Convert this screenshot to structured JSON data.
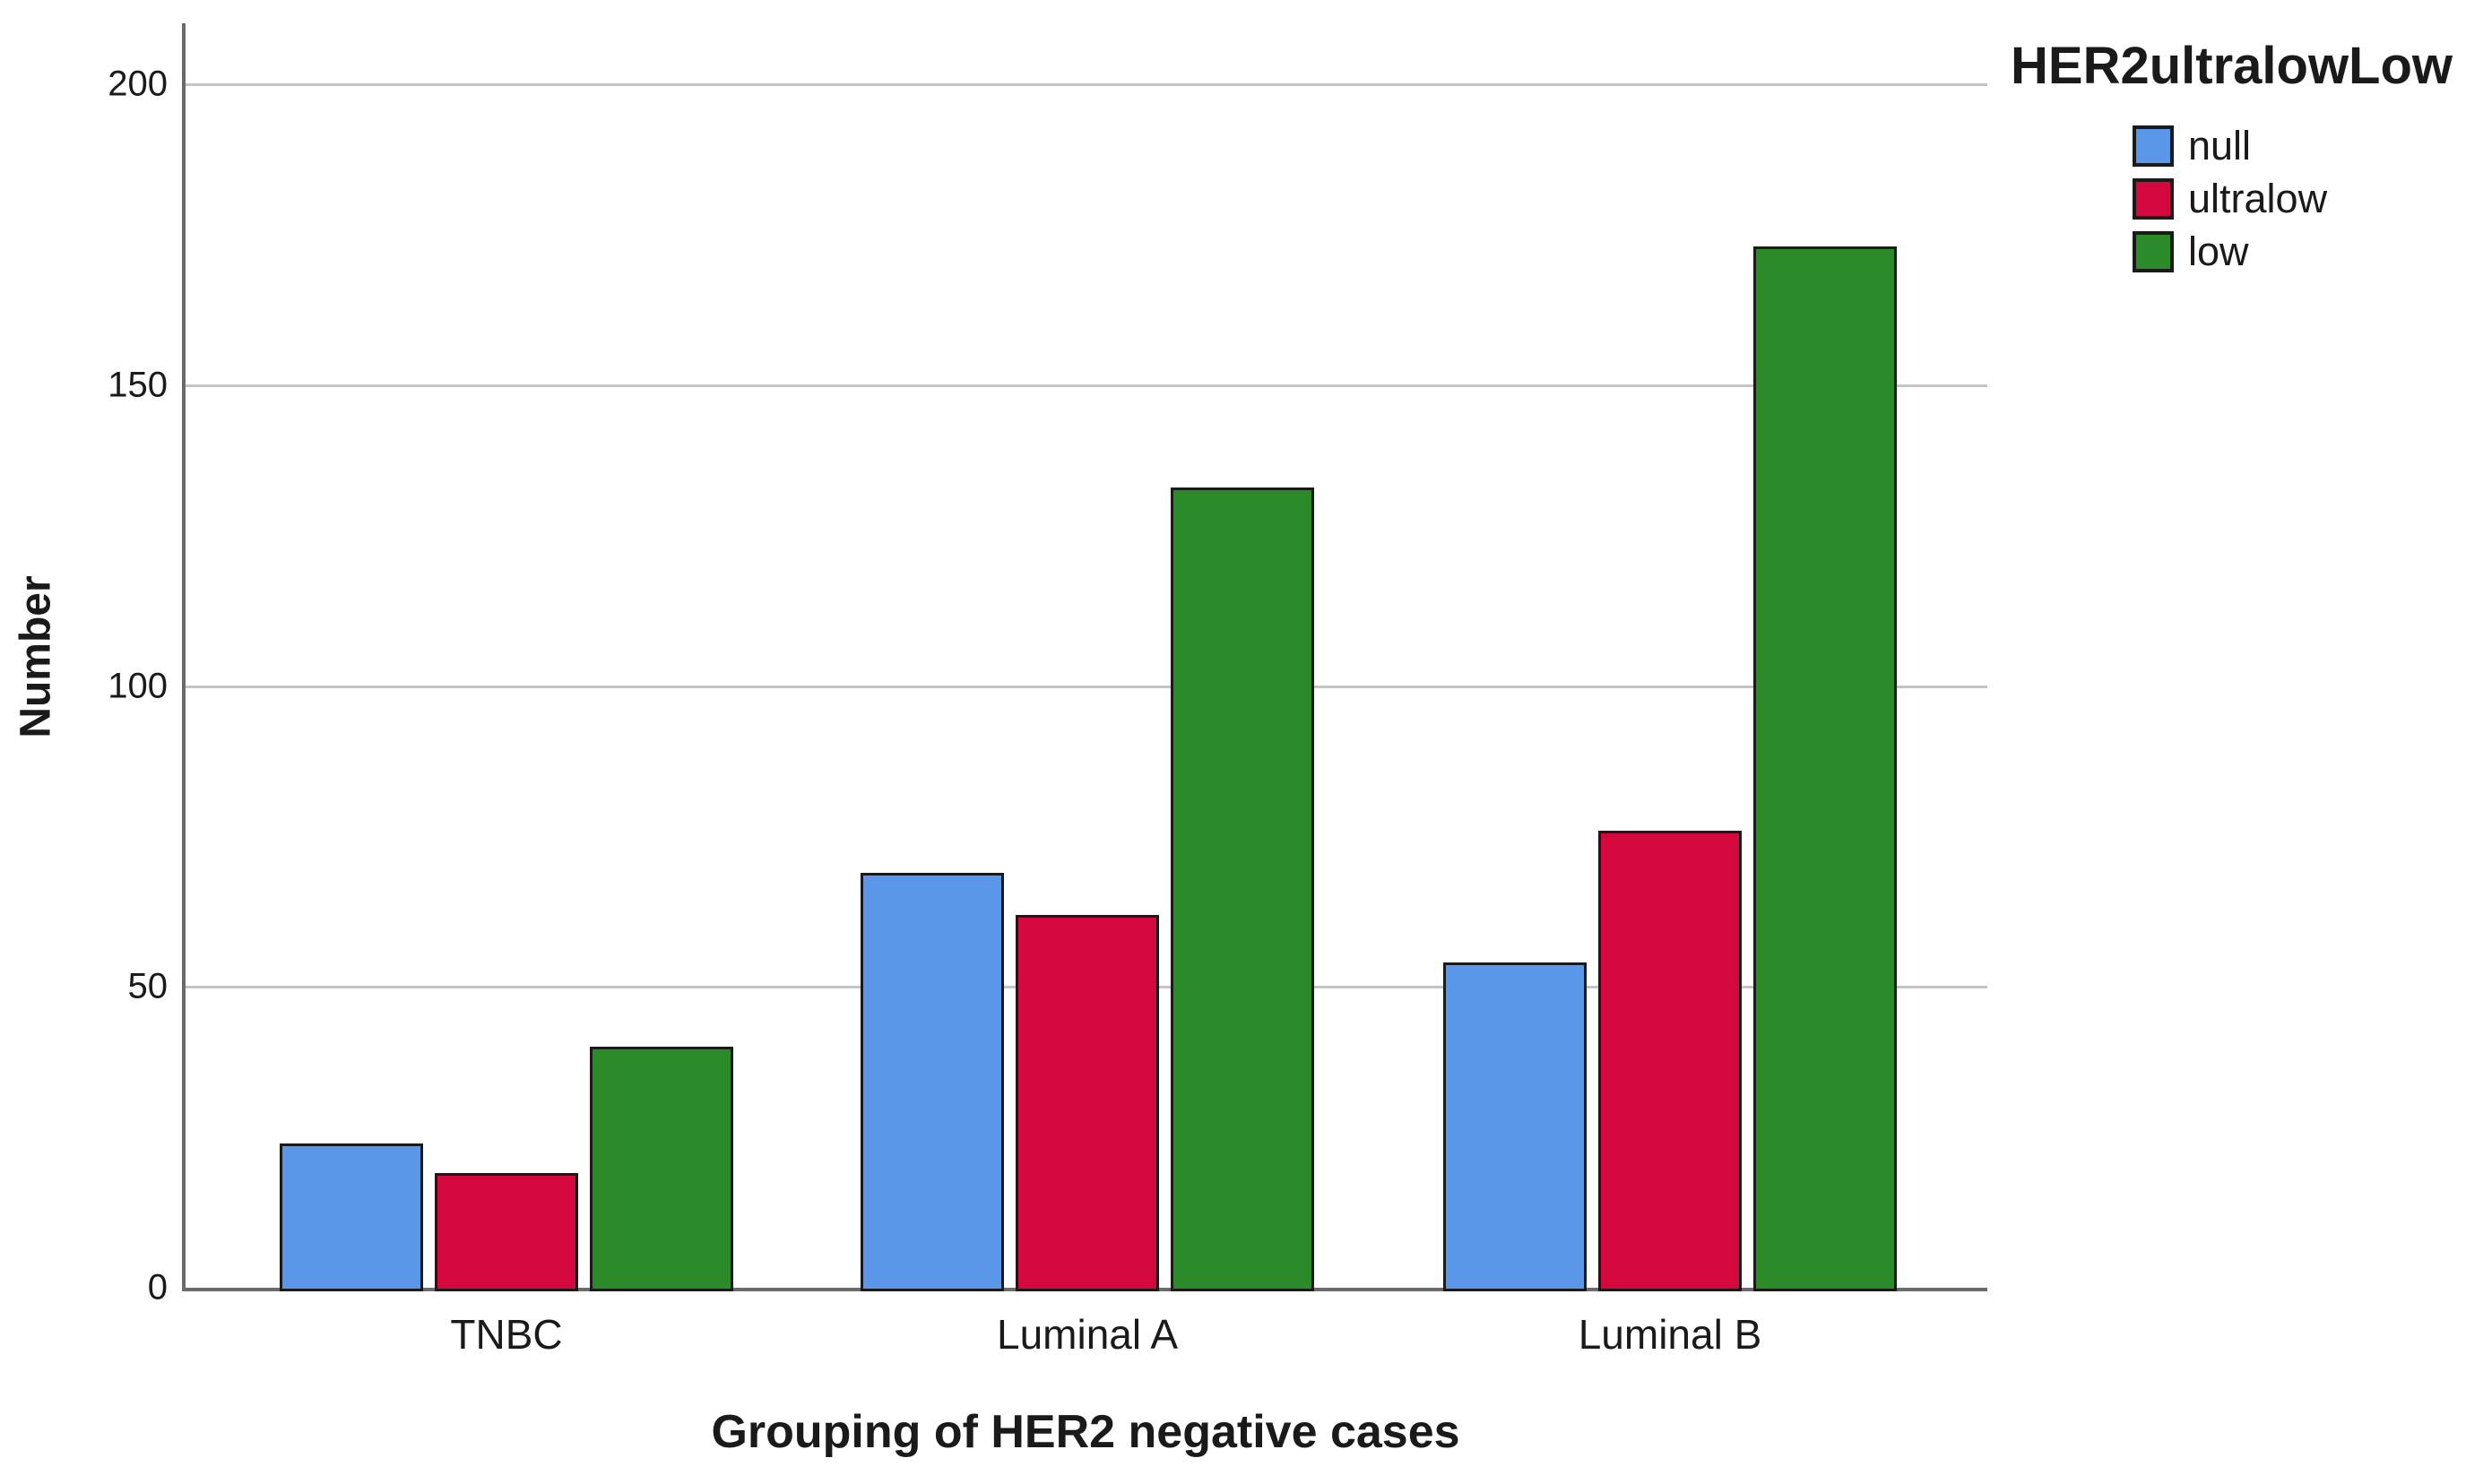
{
  "chart_data": {
    "type": "bar",
    "title": "",
    "xlabel": "Grouping of HER2 negative cases",
    "ylabel": "Number",
    "legend_title": "HER2ultralowLow",
    "legend_position": "top-right",
    "grid": "horizontal",
    "categories": [
      "TNBC",
      "Luminal A",
      "Luminal B"
    ],
    "series": [
      {
        "name": "null",
        "color": "#5B97E8",
        "values": [
          24,
          69,
          54
        ]
      },
      {
        "name": "ultralow",
        "color": "#D5083E",
        "values": [
          19,
          62,
          76
        ]
      },
      {
        "name": "low",
        "color": "#2B8B28",
        "values": [
          40,
          133,
          173
        ]
      }
    ],
    "y_ticks": [
      0,
      50,
      100,
      150,
      200
    ],
    "ylim": [
      0,
      210
    ],
    "colors": {
      "bar_border": "#1a1a1a",
      "axis": "#6b6b6b",
      "gridline": "#c4c4c4",
      "text": "#1a1a1a",
      "background": "#ffffff"
    }
  }
}
